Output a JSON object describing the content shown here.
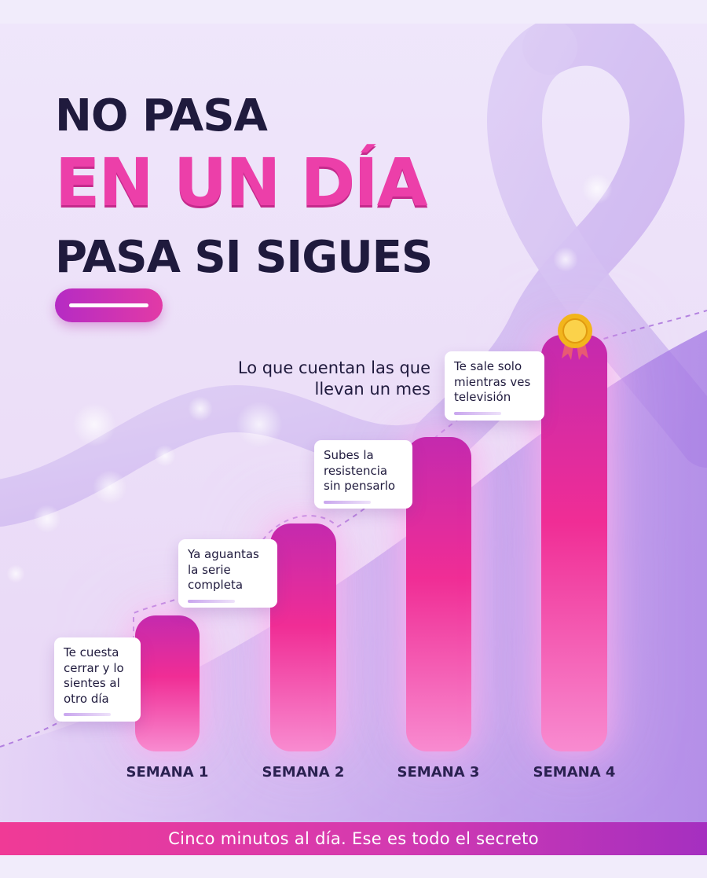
{
  "headline": {
    "line1": "NO PASA",
    "line2": "EN UN DÍA",
    "line3": "PASA SI SIGUES"
  },
  "subtitle": {
    "line1": "Lo que cuentan las que",
    "line2": "llevan un mes"
  },
  "weeks": [
    {
      "label": "SEMANA 1",
      "note": [
        "Te cuesta",
        "cerrar y lo",
        "sientes al",
        "otro día"
      ]
    },
    {
      "label": "SEMANA 2",
      "note": [
        "Ya aguantas",
        "la serie",
        "completa"
      ]
    },
    {
      "label": "SEMANA 3",
      "note": [
        "Subes la",
        "resistencia",
        "sin pensarlo"
      ]
    },
    {
      "label": "SEMANA 4",
      "note": [
        "Te sale solo",
        "mientras ves",
        "televisión"
      ]
    }
  ],
  "footer": {
    "text": "Cinco minutos al día. Ese es todo el secreto"
  },
  "icons": {
    "award": "medal-icon",
    "background": "awareness-ribbon-icon"
  },
  "colors": {
    "accent_pink": "#ec3fa9",
    "heading_navy": "#1f1a3d",
    "bar_gradient_top": "#c42aae",
    "bar_gradient_bottom": "#f88bd0",
    "footer_purple": "#a52fc0"
  }
}
